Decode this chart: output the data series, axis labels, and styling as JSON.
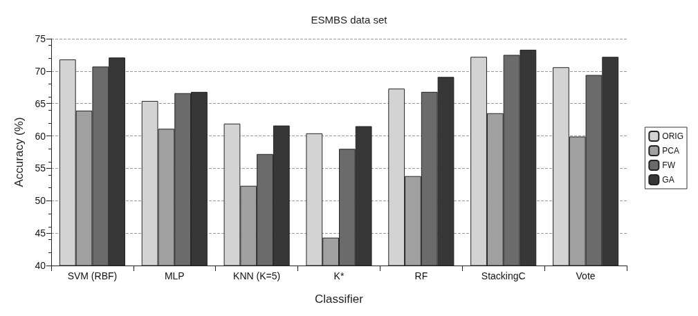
{
  "chart_data": {
    "type": "bar",
    "title": "ESMBS data set",
    "xlabel": "Classifier",
    "ylabel": "Accuracy (%)",
    "categories": [
      "SVM (RBF)",
      "MLP",
      "KNN (K=5)",
      "K*",
      "RF",
      "StackingC",
      "Vote"
    ],
    "series": [
      {
        "name": "ORIG",
        "color": "#d3d3d3",
        "values": [
          71.8,
          65.4,
          61.9,
          60.4,
          67.3,
          72.2,
          70.6
        ]
      },
      {
        "name": "PCA",
        "color": "#a0a0a0",
        "values": [
          63.9,
          61.1,
          52.3,
          44.3,
          53.8,
          63.5,
          59.9
        ]
      },
      {
        "name": "FW",
        "color": "#6b6b6b",
        "values": [
          70.7,
          66.6,
          57.2,
          58.0,
          66.8,
          72.5,
          69.4
        ]
      },
      {
        "name": "GA",
        "color": "#373737",
        "values": [
          72.1,
          66.8,
          61.6,
          61.5,
          69.1,
          73.3,
          72.2
        ]
      }
    ],
    "ylim": [
      40,
      75
    ],
    "yticks": [
      40,
      45,
      50,
      55,
      60,
      65,
      70,
      75
    ],
    "grid": "y",
    "legend": "right"
  }
}
